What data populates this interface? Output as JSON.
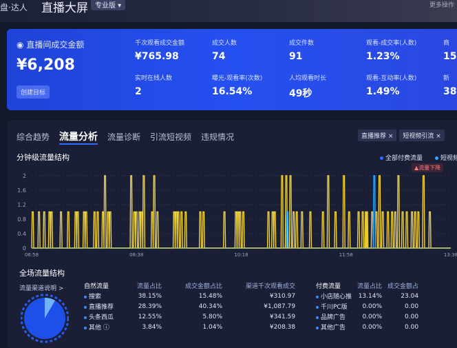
{
  "header": {
    "brand": "盘·达人",
    "title": "直播大屏",
    "version": "专业版",
    "more": "更多操作"
  },
  "kpi": {
    "main": {
      "label": "直播间成交金额",
      "value": "¥6,208",
      "button": "创建目标"
    },
    "cells": [
      {
        "label": "千次观看成交金额",
        "value": "¥765.98"
      },
      {
        "label": "成交人数",
        "value": "74"
      },
      {
        "label": "成交件数",
        "value": "91"
      },
      {
        "label": "观看-成交率(人数)",
        "value": "1.23%"
      },
      {
        "label": "商",
        "value": "15"
      },
      {
        "label": "实时在线人数",
        "value": "2"
      },
      {
        "label": "曝光-观看率(次数)",
        "value": "16.54%"
      },
      {
        "label": "人均观看时长",
        "value": "49秒"
      },
      {
        "label": "观看-互动率(人数)",
        "value": "1.49%"
      },
      {
        "label": "新",
        "value": "38"
      }
    ]
  },
  "tabs": [
    "综合趋势",
    "流量分析",
    "流量诊断",
    "引流短视频",
    "违规情况"
  ],
  "active_tab": 1,
  "chips": [
    "直播推荐 ×",
    "短视频引流 ×"
  ],
  "minute_section": {
    "title": "分钟级流量结构",
    "legend": [
      "全部付费流量",
      "短视频"
    ],
    "warning": "▲流量下降"
  },
  "chart_data": {
    "type": "line",
    "title": "分钟级流量结构",
    "ylim": [
      0,
      2
    ],
    "yticks": [
      "0",
      "0.4",
      "0.8",
      "1.2",
      "1.6",
      "2"
    ],
    "xticks": [
      "06:58",
      "08:38",
      "10:18",
      "11:58",
      "13:38"
    ],
    "x_range": [
      "06:58",
      "13:38"
    ],
    "grid": true,
    "colors": {
      "yellow": "#f2d43a",
      "blue": "#2fa8ff"
    },
    "series": [
      {
        "color": "#f2d43a",
        "baseline": 0,
        "spikes": [
          [
            "06:59",
            1
          ],
          [
            "07:05",
            1
          ],
          [
            "07:10",
            1
          ],
          [
            "07:15",
            1
          ],
          [
            "07:17",
            1
          ],
          [
            "07:26",
            1
          ],
          [
            "07:33",
            1
          ],
          [
            "07:40",
            1
          ],
          [
            "07:42",
            1
          ],
          [
            "07:48",
            1
          ],
          [
            "07:50",
            1
          ],
          [
            "07:58",
            1
          ],
          [
            "08:01",
            1
          ],
          [
            "08:06",
            1
          ],
          [
            "08:08",
            2
          ],
          [
            "08:11",
            1
          ],
          [
            "08:13",
            1
          ],
          [
            "08:33",
            2
          ],
          [
            "08:36",
            1
          ],
          [
            "08:38",
            1
          ],
          [
            "08:41",
            1
          ],
          [
            "08:43",
            1
          ],
          [
            "08:45",
            2
          ],
          [
            "08:53",
            1
          ],
          [
            "08:55",
            2
          ],
          [
            "08:58",
            1
          ],
          [
            "09:14",
            1
          ],
          [
            "09:16",
            1
          ],
          [
            "09:18",
            1
          ],
          [
            "09:21",
            1
          ],
          [
            "09:25",
            1
          ],
          [
            "09:39",
            1
          ],
          [
            "09:42",
            1
          ],
          [
            "10:02",
            1
          ],
          [
            "10:13",
            1
          ],
          [
            "10:15",
            1
          ],
          [
            "10:17",
            1
          ],
          [
            "10:20",
            1
          ],
          [
            "10:44",
            1
          ],
          [
            "10:48",
            1
          ],
          [
            "10:50",
            1
          ],
          [
            "10:57",
            2
          ],
          [
            "11:01",
            2
          ],
          [
            "11:05",
            2
          ],
          [
            "11:08",
            1
          ],
          [
            "11:11",
            1
          ],
          [
            "11:16",
            1
          ],
          [
            "11:24",
            1
          ],
          [
            "11:36",
            1
          ],
          [
            "11:41",
            2
          ],
          [
            "11:48",
            1
          ],
          [
            "11:56",
            2
          ],
          [
            "12:01",
            1
          ],
          [
            "12:10",
            1
          ],
          [
            "12:14",
            1
          ],
          [
            "12:17",
            1
          ],
          [
            "12:18",
            1
          ],
          [
            "12:23",
            1
          ],
          [
            "12:27",
            1
          ],
          [
            "12:30",
            2
          ],
          [
            "12:33",
            1
          ],
          [
            "12:38",
            1
          ],
          [
            "12:42",
            1
          ],
          [
            "12:45",
            1
          ],
          [
            "12:48",
            2
          ],
          [
            "12:52",
            1
          ],
          [
            "12:56",
            1
          ],
          [
            "13:01",
            1
          ],
          [
            "13:04",
            1
          ],
          [
            "13:07",
            1
          ],
          [
            "13:12",
            2
          ],
          [
            "13:18",
            1
          ]
        ]
      },
      {
        "color": "#2fa8ff",
        "baseline": 0,
        "spikes": [
          [
            "11:02",
            1
          ],
          [
            "12:25",
            2
          ]
        ]
      }
    ]
  },
  "structure": {
    "title": "全场流量结构",
    "link": "流量渠道说明 >",
    "organic": {
      "headers": [
        "自然流量",
        "流量占比",
        "成交金额占比",
        "渠道千次观看成交"
      ],
      "rows": [
        [
          "搜索",
          "38.15%",
          "15.48%",
          "¥310.97"
        ],
        [
          "直播推荐",
          "28.39%",
          "40.34%",
          "¥1,087.79"
        ],
        [
          "头条西瓜",
          "12.55%",
          "5.80%",
          "¥341.59"
        ],
        [
          "其他 ⓘ",
          "3.84%",
          "1.04%",
          "¥208.38"
        ]
      ]
    },
    "paid": {
      "headers": [
        "付费流量",
        "流量占比",
        "成交金额占"
      ],
      "rows": [
        [
          "小店随心推",
          "13.14%",
          "23.04"
        ],
        [
          "千川PC版",
          "0.00%",
          "0.00"
        ],
        [
          "品牌广告",
          "0.00%",
          "0.00"
        ],
        [
          "其他广告",
          "0.00%",
          "0.00"
        ]
      ]
    }
  }
}
